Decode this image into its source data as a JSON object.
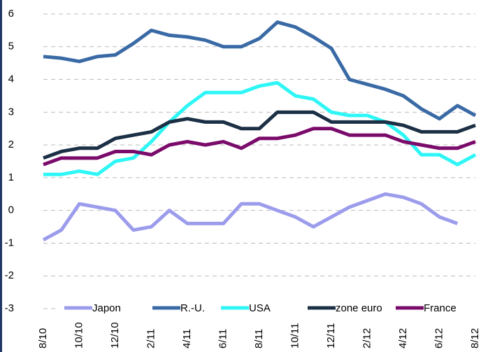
{
  "chart_data": {
    "type": "line",
    "categories": [
      "8/10",
      null,
      "10/10",
      null,
      "12/10",
      null,
      "2/11",
      null,
      "4/11",
      null,
      "6/11",
      null,
      "8/11",
      null,
      "10/11",
      null,
      "12/11",
      null,
      "2/12",
      null,
      "4/12",
      null,
      "6/12",
      null,
      "8/12"
    ],
    "series": [
      {
        "name": "Japon",
        "color": "#9c9cec",
        "values": [
          -0.9,
          -0.6,
          0.2,
          0.1,
          0.0,
          -0.6,
          -0.5,
          0.0,
          -0.4,
          -0.4,
          -0.4,
          0.2,
          0.2,
          0.0,
          -0.2,
          -0.5,
          -0.2,
          0.1,
          0.3,
          0.5,
          0.4,
          0.2,
          -0.2,
          -0.4,
          null
        ]
      },
      {
        "name": "R.-U.",
        "color": "#3a6aa5",
        "values": [
          4.7,
          4.65,
          4.55,
          4.7,
          4.75,
          5.1,
          5.5,
          5.35,
          5.3,
          5.2,
          5.0,
          5.0,
          5.25,
          5.75,
          5.6,
          5.3,
          4.95,
          4.0,
          3.85,
          3.7,
          3.5,
          3.1,
          2.8,
          3.2,
          2.9
        ]
      },
      {
        "name": "USA",
        "color": "#2ef6f6",
        "values": [
          1.1,
          1.1,
          1.2,
          1.1,
          1.5,
          1.6,
          2.1,
          2.7,
          3.2,
          3.6,
          3.6,
          3.6,
          3.8,
          3.9,
          3.5,
          3.4,
          3.0,
          2.9,
          2.9,
          2.7,
          2.3,
          1.7,
          1.7,
          1.4,
          1.7
        ]
      },
      {
        "name": "zone euro",
        "color": "#1b2f45",
        "values": [
          1.6,
          1.8,
          1.9,
          1.9,
          2.2,
          2.3,
          2.4,
          2.7,
          2.8,
          2.7,
          2.7,
          2.5,
          2.5,
          3.0,
          3.0,
          3.0,
          2.7,
          2.7,
          2.7,
          2.7,
          2.6,
          2.4,
          2.4,
          2.4,
          2.6
        ]
      },
      {
        "name": "France",
        "color": "#7b0b6b",
        "values": [
          1.4,
          1.6,
          1.6,
          1.6,
          1.8,
          1.8,
          1.7,
          2.0,
          2.1,
          2.0,
          2.1,
          1.9,
          2.2,
          2.2,
          2.3,
          2.5,
          2.5,
          2.3,
          2.3,
          2.3,
          2.1,
          2.0,
          1.9,
          1.9,
          2.1
        ]
      }
    ],
    "ylim": [
      -3,
      6
    ],
    "yticks": [
      -3,
      -2,
      -1,
      0,
      1,
      2,
      3,
      4,
      5,
      6
    ],
    "grid": true
  }
}
